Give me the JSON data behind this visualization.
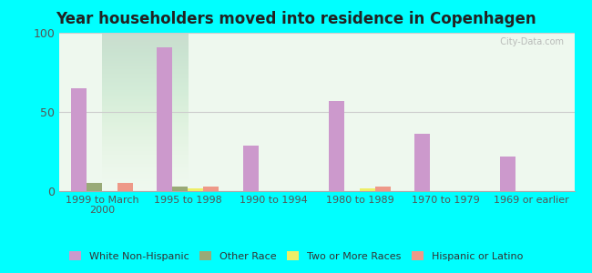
{
  "title": "Year householders moved into residence in Copenhagen",
  "categories": [
    "1999 to March\n2000",
    "1995 to 1998",
    "1990 to 1994",
    "1980 to 1989",
    "1970 to 1979",
    "1969 or earlier"
  ],
  "series": {
    "White Non-Hispanic": [
      65,
      91,
      29,
      57,
      36,
      22
    ],
    "Other Race": [
      5,
      3,
      0,
      0,
      0,
      0
    ],
    "Two or More Races": [
      0,
      2,
      0,
      2,
      0,
      0
    ],
    "Hispanic or Latino": [
      5,
      3,
      0,
      3,
      0,
      0
    ]
  },
  "colors": {
    "White Non-Hispanic": "#cc99cc",
    "Other Race": "#99aa77",
    "Two or More Races": "#eeee66",
    "Hispanic or Latino": "#ee9988"
  },
  "ylim": [
    0,
    100
  ],
  "yticks": [
    0,
    50,
    100
  ],
  "background_outer": "#00ffff",
  "background_inner_top": "#e8f5f0",
  "background_inner_bottom": "#f5fff5",
  "grid_color": "#cccccc",
  "bar_width": 0.18,
  "group_width": 0.85
}
